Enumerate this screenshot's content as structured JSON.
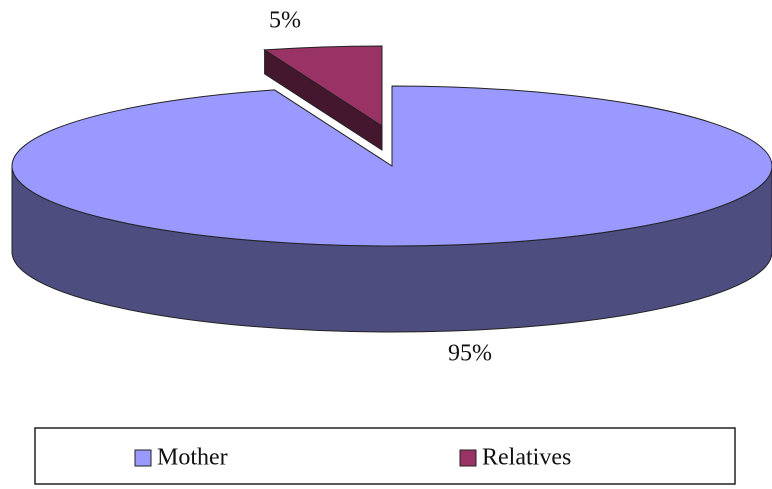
{
  "chart_data": {
    "type": "pie3d",
    "categories": [
      "Mother",
      "Relatives"
    ],
    "values": [
      95,
      5
    ],
    "value_labels": [
      "95%",
      "5%"
    ],
    "colors": [
      "#9999ff",
      "#993366"
    ],
    "legend": "bottom"
  }
}
